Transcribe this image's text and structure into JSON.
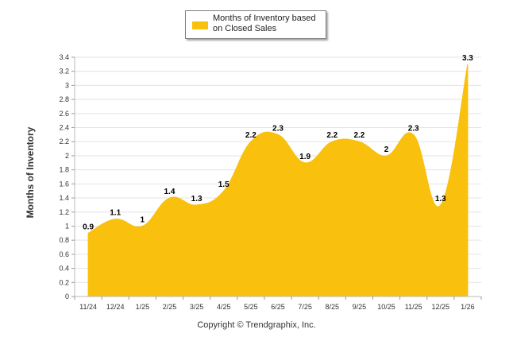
{
  "legend": {
    "label": "Months of Inventory based on Closed Sales",
    "color": "#F9C10D"
  },
  "copyright": "Copyright © Trendgraphix, Inc.",
  "chart_data": {
    "type": "area",
    "title": "",
    "xlabel": "",
    "ylabel": "Months of Inventory",
    "categories": [
      "11/24",
      "12/24",
      "1/25",
      "2/25",
      "3/25",
      "4/25",
      "5/25",
      "6/25",
      "7/25",
      "8/25",
      "9/25",
      "10/25",
      "11/25",
      "12/25",
      "1/26"
    ],
    "series": [
      {
        "name": "Months of Inventory based on Closed Sales",
        "values": [
          0.9,
          1.1,
          1,
          1.4,
          1.3,
          1.5,
          2.2,
          2.3,
          1.9,
          2.2,
          2.2,
          2,
          2.3,
          1.3,
          3.3
        ],
        "labels": [
          "0.9",
          "1.1",
          "1",
          "1.4",
          "1.3",
          "1.5",
          "2.2",
          "2.3",
          "1.9",
          "2.2",
          "2.2",
          "2",
          "2.3",
          "1.3",
          "3.3"
        ]
      }
    ],
    "ylim": [
      0,
      3.4
    ],
    "yticks": [
      "0",
      "0.2",
      "0.4",
      "0.6",
      "0.8",
      "1",
      "1.2",
      "1.4",
      "1.6",
      "1.8",
      "2",
      "2.2",
      "2.4",
      "2.6",
      "2.8",
      "3",
      "3.2",
      "3.4"
    ],
    "grid": true,
    "legend_position": "top-center",
    "color": "#F9C10D"
  }
}
